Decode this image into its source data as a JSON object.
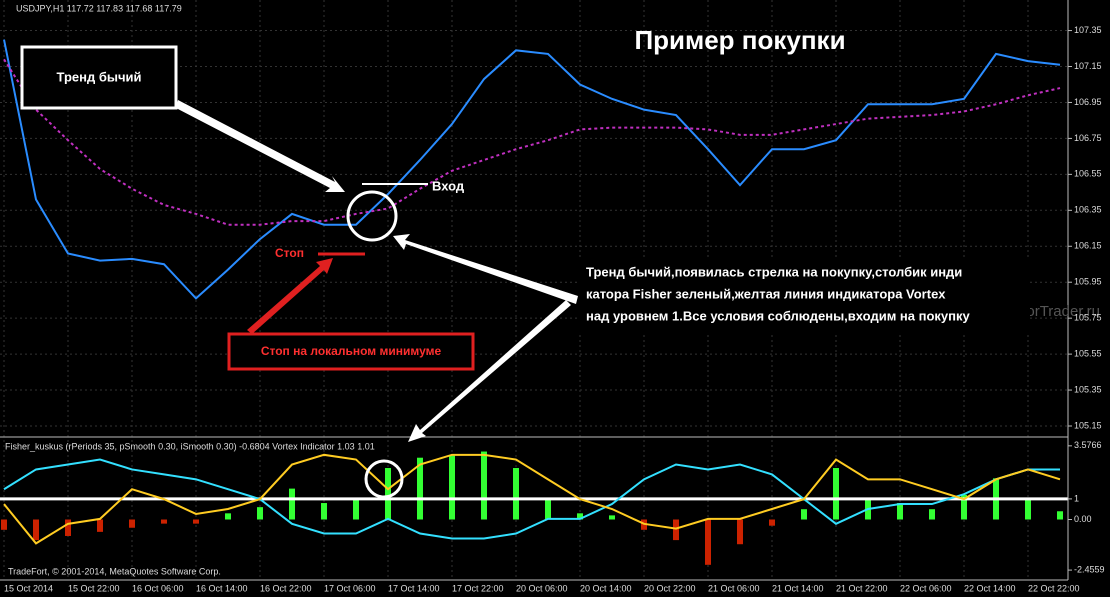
{
  "watermark": "ForTrader.ru",
  "footer": "TradeFort, © 2001-2014, MetaQuotes Software Corp.",
  "annotations": {
    "trend": "Тренд бычий",
    "entry": "Вход",
    "stop": "Стоп",
    "stop_note": "Стоп на локальном минимуме",
    "explanation": [
      "Тренд бычий,появилась стрелка на покупку,столбик инди",
      "катора Fisher зеленый,желтая линия индикатора Vortex",
      "над уровнем 1.Все условия соблюдены,входим на покупку"
    ]
  },
  "chart_data": [
    {
      "type": "line",
      "label": "USDJPY,H1  117.72 117.83 117.68 117.79",
      "title": "Пример покупки",
      "categories": [
        "15 Oct 2014",
        null,
        "15 Oct 22:00",
        null,
        "16 Oct 06:00",
        null,
        "16 Oct 14:00",
        null,
        "16 Oct 22:00",
        null,
        "17 Oct 06:00",
        null,
        "17 Oct 14:00",
        null,
        "17 Oct 22:00",
        null,
        "20 Oct 06:00",
        null,
        "20 Oct 14:00",
        null,
        "20 Oct 22:00",
        null,
        "21 Oct 06:00",
        null,
        "21 Oct 14:00",
        null,
        "21 Oct 22:00",
        null,
        "22 Oct 06:00",
        null,
        "22 Oct 14:00",
        null,
        "22 Oct 22:00",
        null
      ],
      "series": [
        {
          "color": "#2a8cff",
          "values": [
            107.3,
            106.41,
            106.11,
            106.07,
            106.08,
            106.05,
            105.86,
            106.02,
            106.19,
            106.33,
            106.27,
            106.27,
            106.44,
            106.63,
            106.83,
            107.08,
            107.24,
            107.22,
            107.05,
            106.97,
            106.91,
            106.88,
            106.69,
            106.49,
            106.69,
            106.69,
            106.74,
            106.94,
            106.94,
            106.94,
            106.97,
            107.22,
            107.18,
            107.16
          ]
        },
        {
          "color": "#c030c0",
          "dashed": true,
          "values": [
            107.19,
            106.91,
            106.74,
            106.58,
            106.47,
            106.38,
            106.33,
            106.27,
            106.27,
            106.29,
            106.29,
            106.33,
            106.36,
            106.47,
            106.57,
            106.63,
            106.69,
            106.74,
            106.8,
            106.81,
            106.81,
            106.81,
            106.8,
            106.77,
            106.77,
            106.8,
            106.83,
            106.86,
            106.87,
            106.88,
            106.9,
            106.94,
            106.99,
            107.03
          ]
        }
      ],
      "ylim": [
        105.1,
        107.52
      ],
      "yticks": [
        107.35,
        107.15,
        106.95,
        106.75,
        106.55,
        106.35,
        106.15,
        105.95,
        105.75,
        105.55,
        105.35,
        105.15
      ],
      "grid": true
    },
    {
      "type": "combo",
      "label": "Fisher_kuskus  (rPeriods 35, pSmooth 0.30, iSmooth 0.30)   -0.6804   Vortex Indicator 1.03 1.01",
      "bars": {
        "up_color": "#33ff33",
        "down_color": "#cc2200",
        "values": [
          -0.5,
          -1.0,
          -0.8,
          -0.6,
          -0.4,
          -0.2,
          -0.2,
          0.3,
          0.6,
          1.5,
          0.8,
          1.0,
          2.5,
          3.0,
          3.1,
          3.3,
          2.5,
          1.0,
          0.3,
          0.2,
          -0.5,
          -1.0,
          -2.2,
          -1.2,
          -0.3,
          0.5,
          2.5,
          1.0,
          0.8,
          0.5,
          1.2,
          2.0,
          1.0,
          0.4
        ]
      },
      "series": [
        {
          "color": "#33e0ff",
          "values": [
            1.47,
            2.43,
            2.67,
            2.91,
            2.43,
            2.19,
            1.95,
            1.47,
            0.99,
            -0.21,
            -0.68,
            -0.68,
            0.03,
            -0.68,
            -0.92,
            -0.92,
            -0.68,
            0.03,
            0.03,
            0.75,
            1.95,
            2.67,
            2.43,
            2.67,
            2.19,
            0.99,
            -0.21,
            0.51,
            0.75,
            0.75,
            1.23,
            1.95,
            2.43,
            2.43
          ]
        },
        {
          "color": "#ffcc22",
          "values": [
            0.75,
            -1.16,
            -0.21,
            0.03,
            1.47,
            0.99,
            0.27,
            0.51,
            0.99,
            2.67,
            3.14,
            2.91,
            1.47,
            2.67,
            3.14,
            3.14,
            2.91,
            1.95,
            0.99,
            0.51,
            -0.21,
            -0.44,
            0.03,
            0.03,
            0.51,
            0.99,
            2.91,
            1.95,
            1.95,
            1.47,
            0.99,
            1.95,
            2.43,
            1.95
          ]
        }
      ],
      "level": 1,
      "ylim": [
        -2.84,
        3.86
      ],
      "yticks": [
        3.5766,
        1,
        {
          "value": 0,
          "label": "0.00"
        },
        -2.4559
      ]
    }
  ]
}
